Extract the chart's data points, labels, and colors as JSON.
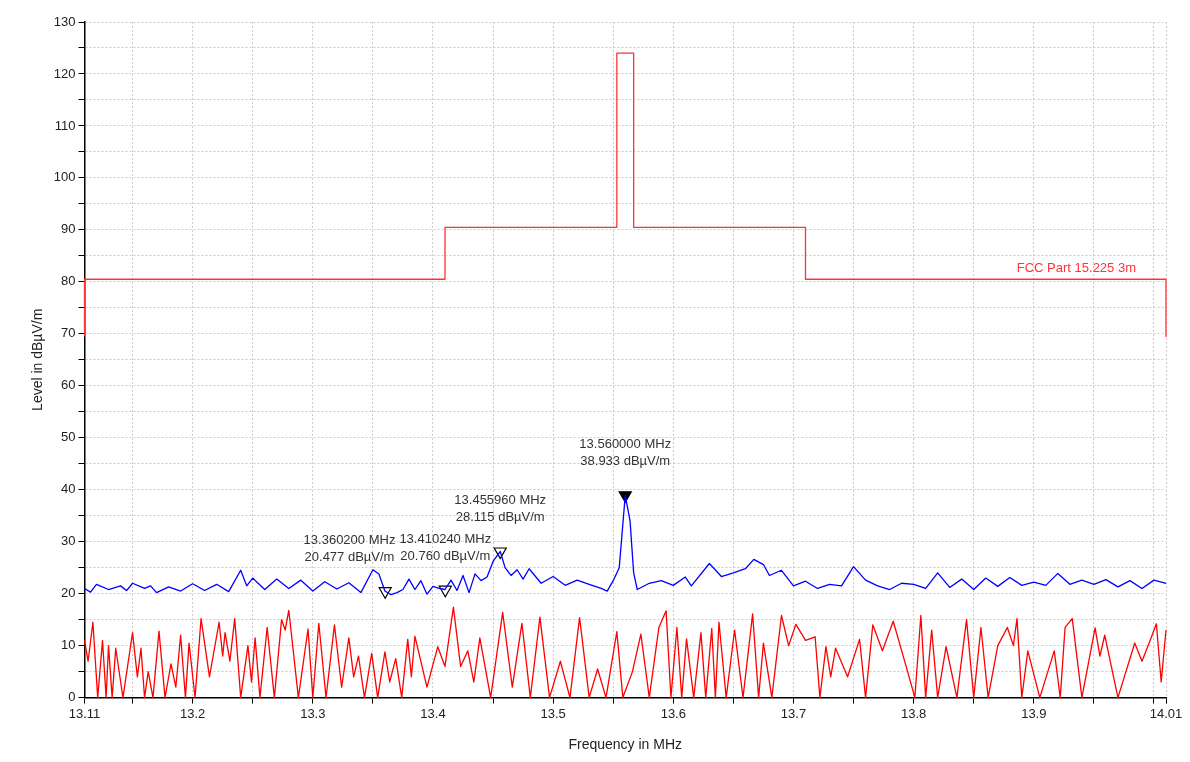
{
  "chart_data": {
    "type": "line",
    "xlabel": "Frequency in MHz",
    "ylabel": "Level in dBµV/m",
    "xlim": [
      13.11,
      14.01
    ],
    "xticks": [
      13.11,
      {
        "value": 13.15,
        "label": null
      },
      13.2,
      {
        "value": 13.25,
        "label": null
      },
      13.3,
      {
        "value": 13.35,
        "label": null
      },
      13.4,
      {
        "value": 13.45,
        "label": null
      },
      13.5,
      {
        "value": 13.55,
        "label": null
      },
      13.6,
      {
        "value": 13.65,
        "label": null
      },
      13.7,
      {
        "value": 13.75,
        "label": null
      },
      13.8,
      {
        "value": 13.85,
        "label": null
      },
      13.9,
      {
        "value": 13.95,
        "label": null
      },
      {
        "value": 14.0,
        "label": null
      },
      14.01
    ],
    "ylim": [
      0,
      130
    ],
    "yticks": [
      0,
      {
        "value": 5,
        "label": null
      },
      10,
      {
        "value": 15,
        "label": null
      },
      20,
      {
        "value": 25,
        "label": null
      },
      30,
      {
        "value": 35,
        "label": null
      },
      40,
      {
        "value": 45,
        "label": null
      },
      50,
      {
        "value": 55,
        "label": null
      },
      60,
      {
        "value": 65,
        "label": null
      },
      70,
      {
        "value": 75,
        "label": null
      },
      80,
      {
        "value": 85,
        "label": null
      },
      90,
      {
        "value": 95,
        "label": null
      },
      100,
      {
        "value": 105,
        "label": null
      },
      110,
      {
        "value": 115,
        "label": null
      },
      120,
      {
        "value": 125,
        "label": null
      },
      130
    ],
    "grid": true,
    "legend": false,
    "marker": "none",
    "line_style": "solid",
    "series": [
      {
        "name": "FCC Part 15.225 3m",
        "color": "#ff3333",
        "x": [
          13.11,
          13.11,
          13.41,
          13.41,
          13.553,
          13.553,
          13.567,
          13.567,
          13.71,
          13.71,
          14.01,
          14.01
        ],
        "values": [
          69.5,
          80.5,
          80.5,
          90.5,
          90.5,
          124,
          124,
          90.5,
          90.5,
          80.5,
          80.5,
          69.5
        ]
      },
      {
        "color": "#ff0000",
        "x": [
          13.11,
          13.113,
          13.117,
          13.121,
          13.125,
          13.128,
          13.13,
          13.133,
          13.136,
          13.142,
          13.15,
          13.154,
          13.157,
          13.16,
          13.163,
          13.167,
          13.172,
          13.177,
          13.182,
          13.186,
          13.19,
          13.194,
          13.197,
          13.202,
          13.207,
          13.214,
          13.222,
          13.225,
          13.227,
          13.231,
          13.235,
          13.24,
          13.246,
          13.249,
          13.252,
          13.256,
          13.262,
          13.268,
          13.274,
          13.277,
          13.28,
          13.288,
          13.296,
          13.3,
          13.305,
          13.311,
          13.318,
          13.324,
          13.33,
          13.334,
          13.338,
          13.343,
          13.349,
          13.354,
          13.36,
          13.364,
          13.369,
          13.374,
          13.379,
          13.382,
          13.385,
          13.395,
          13.404,
          13.41,
          13.417,
          13.423,
          13.429,
          13.434,
          13.439,
          13.448,
          13.458,
          13.466,
          13.474,
          13.481,
          13.489,
          13.497,
          13.506,
          13.514,
          13.522,
          13.53,
          13.537,
          13.544,
          13.553,
          13.558,
          13.566,
          13.573,
          13.58,
          13.588,
          13.594,
          13.598,
          13.603,
          13.607,
          13.611,
          13.617,
          13.623,
          13.627,
          13.632,
          13.635,
          13.638,
          13.644,
          13.651,
          13.658,
          13.666,
          13.671,
          13.675,
          13.682,
          13.69,
          13.696,
          13.702,
          13.71,
          13.718,
          13.722,
          13.727,
          13.731,
          13.735,
          13.745,
          13.755,
          13.76,
          13.766,
          13.774,
          13.783,
          13.795,
          13.801,
          13.806,
          13.81,
          13.815,
          13.82,
          13.827,
          13.836,
          13.844,
          13.85,
          13.856,
          13.862,
          13.87,
          13.878,
          13.883,
          13.886,
          13.89,
          13.895,
          13.905,
          13.917,
          13.922,
          13.926,
          13.932,
          13.94,
          13.951,
          13.955,
          13.959,
          13.97,
          13.984,
          13.99,
          13.996,
          14.002,
          14.006,
          14.01
        ],
        "values": [
          11,
          7,
          14.5,
          0,
          11,
          0,
          10,
          0,
          9.5,
          0,
          12.5,
          4,
          9.5,
          0,
          5,
          0,
          12.8,
          0,
          6.5,
          2,
          12,
          0,
          10.5,
          0,
          15.2,
          4,
          14.5,
          8,
          12.5,
          7,
          15.2,
          0,
          10,
          3,
          11.5,
          0,
          13.5,
          0,
          15,
          13,
          16.8,
          0,
          13.2,
          0,
          14.3,
          0,
          14,
          2,
          11.5,
          4,
          8,
          0,
          8.5,
          0,
          8.8,
          3,
          7.5,
          0,
          11.2,
          4,
          11.8,
          2,
          9.8,
          6,
          17.4,
          6,
          9,
          3,
          11.5,
          0,
          16.4,
          2,
          14.3,
          0,
          15.5,
          0,
          7,
          0,
          15.4,
          0,
          5.5,
          0,
          12.7,
          0,
          5,
          12.2,
          0,
          13.5,
          16.7,
          0,
          13.5,
          0,
          11.3,
          0,
          12.5,
          0,
          13.3,
          0,
          14.5,
          0,
          13,
          0,
          16.1,
          0,
          10.5,
          0,
          15.8,
          10,
          14.1,
          11,
          11.7,
          0,
          9.8,
          4,
          9.5,
          4,
          11.2,
          0,
          14,
          9,
          14.7,
          5,
          0,
          15.8,
          0,
          13,
          0,
          9.8,
          0,
          15,
          0,
          13.5,
          0,
          10,
          13.5,
          10,
          15.2,
          0,
          9,
          0,
          9,
          0,
          13.5,
          15.2,
          0,
          13.4,
          8,
          12,
          0,
          10.5,
          7,
          10.5,
          14.2,
          3,
          13
        ]
      },
      {
        "color": "#0000ff",
        "x": [
          13.11,
          13.115,
          13.12,
          13.13,
          13.14,
          13.145,
          13.15,
          13.16,
          13.165,
          13.17,
          13.18,
          13.19,
          13.2,
          13.21,
          13.22,
          13.23,
          13.24,
          13.245,
          13.25,
          13.26,
          13.27,
          13.28,
          13.29,
          13.3,
          13.31,
          13.32,
          13.33,
          13.34,
          13.35,
          13.355,
          13.36,
          13.365,
          13.37,
          13.375,
          13.38,
          13.385,
          13.39,
          13.395,
          13.4,
          13.405,
          13.41,
          13.415,
          13.42,
          13.425,
          13.43,
          13.435,
          13.44,
          13.445,
          13.45,
          13.456,
          13.46,
          13.465,
          13.47,
          13.475,
          13.48,
          13.49,
          13.5,
          13.51,
          13.52,
          13.53,
          13.54,
          13.545,
          13.55,
          13.555,
          13.56,
          13.564,
          13.567,
          13.57,
          13.58,
          13.59,
          13.6,
          13.61,
          13.615,
          13.63,
          13.64,
          13.65,
          13.66,
          13.667,
          13.675,
          13.68,
          13.69,
          13.7,
          13.71,
          13.72,
          13.73,
          13.74,
          13.75,
          13.76,
          13.77,
          13.78,
          13.79,
          13.8,
          13.81,
          13.82,
          13.83,
          13.84,
          13.85,
          13.86,
          13.87,
          13.88,
          13.89,
          13.9,
          13.91,
          13.92,
          13.93,
          13.94,
          13.95,
          13.96,
          13.97,
          13.98,
          13.99,
          14.0,
          14.01
        ],
        "values": [
          21,
          20.3,
          21.8,
          20.8,
          21.5,
          20.6,
          22,
          21,
          21.5,
          20.2,
          21.3,
          20.5,
          21.9,
          20.6,
          21.8,
          20.4,
          24.5,
          21.5,
          23,
          20.8,
          22.8,
          21,
          22.6,
          20.5,
          22.3,
          20.9,
          22.1,
          20.2,
          24.6,
          23.8,
          20.5,
          19.8,
          20.2,
          20.8,
          22.8,
          20.8,
          22.5,
          19.9,
          21.4,
          21,
          20.8,
          22.6,
          20.6,
          23.5,
          20.2,
          23.8,
          22.5,
          23.2,
          26.2,
          28.115,
          25,
          23.5,
          24.6,
          22.8,
          24.8,
          22,
          23.3,
          21.6,
          22.6,
          21.8,
          21,
          20.5,
          22.5,
          25,
          38.933,
          34,
          24,
          20.8,
          22,
          22.5,
          21.6,
          23.2,
          21.5,
          25.8,
          23.3,
          24,
          24.8,
          26.6,
          25.6,
          23.5,
          24.5,
          21.5,
          22.4,
          21,
          21.8,
          21.5,
          25.2,
          22.6,
          21.5,
          20.8,
          22,
          21.8,
          21,
          24,
          21.2,
          22.8,
          20.8,
          23,
          21.4,
          23.1,
          21.6,
          22.2,
          21.6,
          23.9,
          21.8,
          22.6,
          21.8,
          22.7,
          21.3,
          22.5,
          21,
          22.6,
          22
        ]
      },
      {
        "type": "scatter",
        "marker": "triangle",
        "color": "#000000",
        "colors": [
          "#ffffff",
          "#ffffff",
          "#ffffff",
          "#000000"
        ],
        "x": [
          13.3602,
          13.41024,
          13.45596,
          13.56
        ],
        "values": [
          20.477,
          20.76,
          28.115,
          38.933
        ]
      }
    ],
    "annotations": [
      {
        "text": "13.360200 MHz\n20.477 dBµV/m",
        "x": 13.3602,
        "y": 20.477
      },
      {
        "text": "13.410240 MHz\n20.760 dBµV/m",
        "x": 13.41024,
        "y": 20.76
      },
      {
        "text": "13.455960 MHz\n28.115 dBµV/m",
        "x": 13.45596,
        "y": 28.115
      },
      {
        "text": "13.560000 MHz\n38.933 dBµV/m",
        "x": 13.56,
        "y": 38.933
      }
    ]
  }
}
